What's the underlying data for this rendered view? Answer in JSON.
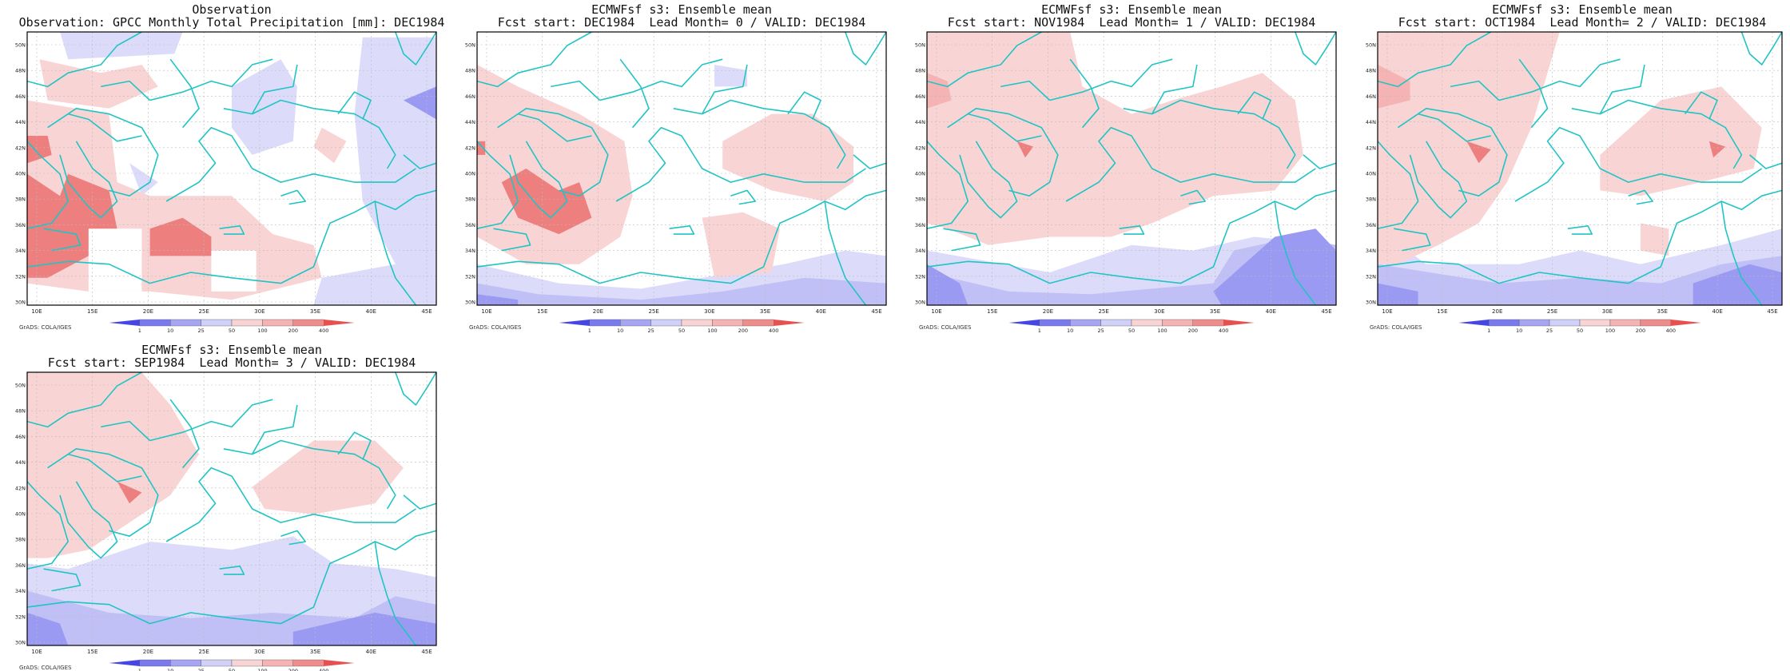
{
  "colors": {
    "blue3": "#9a9af2",
    "blue2": "#c0c0f6",
    "blue1": "#dcdcfa",
    "red1": "#f9d4d4",
    "red2": "#f5b3b3",
    "red3": "#ed7f7f",
    "red4": "#e85a5a",
    "coast": "#21c4c4",
    "grid": "#bbbbbb"
  },
  "map_axes": {
    "lon_labels": [
      "10E",
      "15E",
      "20E",
      "25E",
      "30E",
      "35E",
      "40E",
      "45E"
    ],
    "lat_labels": [
      "30N",
      "32N",
      "34N",
      "36N",
      "38N",
      "40N",
      "42N",
      "44N",
      "46N",
      "48N",
      "50N"
    ]
  },
  "colorbar": {
    "labels": [
      "1",
      "10",
      "25",
      "50",
      "100",
      "200",
      "400"
    ],
    "colors": [
      "#4646e6",
      "#7a7aee",
      "#a5a5f4",
      "#d0d0f9",
      "#f9d4d4",
      "#f5b3b3",
      "#ef8c8c",
      "#e85050"
    ]
  },
  "credit": "GrADS: COLA/IGES",
  "panels": [
    {
      "title_line1": "Observation",
      "title_line2": "Observation: GPCC Monthly Total Precipitation [mm]: DEC1984",
      "pattern": "obs"
    },
    {
      "title_line1": "ECMWFsf s3: Ensemble mean",
      "title_line2": "Fcst start: DEC1984  Lead Month= 0 / VALID: DEC1984",
      "pattern": "lead0"
    },
    {
      "title_line1": "ECMWFsf s3: Ensemble mean",
      "title_line2": "Fcst start: NOV1984  Lead Month= 1 / VALID: DEC1984",
      "pattern": "lead1"
    },
    {
      "title_line1": "ECMWFsf s3: Ensemble mean",
      "title_line2": "Fcst start: OCT1984  Lead Month= 2 / VALID: DEC1984",
      "pattern": "lead2"
    },
    {
      "title_line1": "ECMWFsf s3: Ensemble mean",
      "title_line2": "Fcst start: SEP1984  Lead Month= 3 / VALID: DEC1984",
      "pattern": "lead3"
    }
  ]
}
